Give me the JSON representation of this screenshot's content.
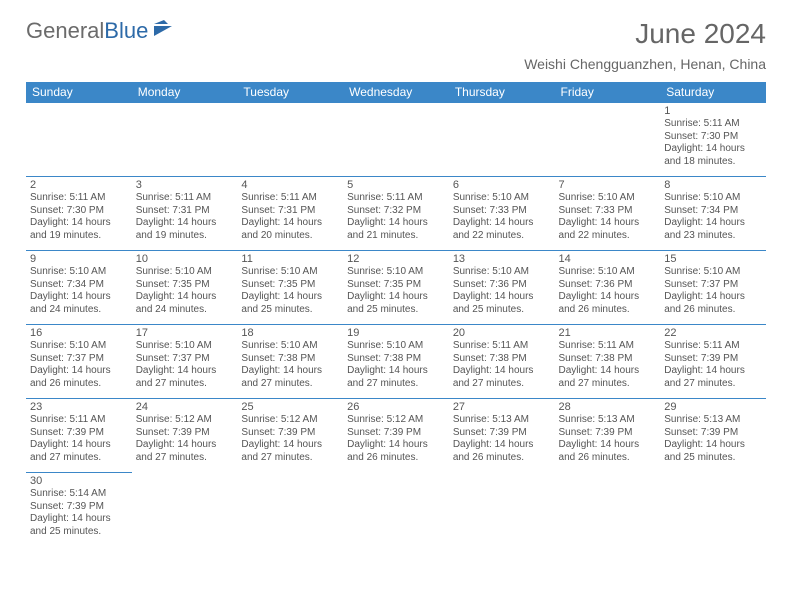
{
  "logo": {
    "word1": "General",
    "word2": "Blue"
  },
  "header": {
    "title": "June 2024",
    "location": "Weishi Chengguanzhen, Henan, China"
  },
  "colors": {
    "header_bg": "#3b87c8",
    "header_text": "#ffffff",
    "cell_border": "#3b87c8",
    "body_text": "#555555",
    "title_text": "#666666"
  },
  "weekdays": [
    "Sunday",
    "Monday",
    "Tuesday",
    "Wednesday",
    "Thursday",
    "Friday",
    "Saturday"
  ],
  "weeks": [
    [
      null,
      null,
      null,
      null,
      null,
      null,
      {
        "n": "1",
        "sunrise": "Sunrise: 5:11 AM",
        "sunset": "Sunset: 7:30 PM",
        "d1": "Daylight: 14 hours",
        "d2": "and 18 minutes."
      }
    ],
    [
      {
        "n": "2",
        "sunrise": "Sunrise: 5:11 AM",
        "sunset": "Sunset: 7:30 PM",
        "d1": "Daylight: 14 hours",
        "d2": "and 19 minutes."
      },
      {
        "n": "3",
        "sunrise": "Sunrise: 5:11 AM",
        "sunset": "Sunset: 7:31 PM",
        "d1": "Daylight: 14 hours",
        "d2": "and 19 minutes."
      },
      {
        "n": "4",
        "sunrise": "Sunrise: 5:11 AM",
        "sunset": "Sunset: 7:31 PM",
        "d1": "Daylight: 14 hours",
        "d2": "and 20 minutes."
      },
      {
        "n": "5",
        "sunrise": "Sunrise: 5:11 AM",
        "sunset": "Sunset: 7:32 PM",
        "d1": "Daylight: 14 hours",
        "d2": "and 21 minutes."
      },
      {
        "n": "6",
        "sunrise": "Sunrise: 5:10 AM",
        "sunset": "Sunset: 7:33 PM",
        "d1": "Daylight: 14 hours",
        "d2": "and 22 minutes."
      },
      {
        "n": "7",
        "sunrise": "Sunrise: 5:10 AM",
        "sunset": "Sunset: 7:33 PM",
        "d1": "Daylight: 14 hours",
        "d2": "and 22 minutes."
      },
      {
        "n": "8",
        "sunrise": "Sunrise: 5:10 AM",
        "sunset": "Sunset: 7:34 PM",
        "d1": "Daylight: 14 hours",
        "d2": "and 23 minutes."
      }
    ],
    [
      {
        "n": "9",
        "sunrise": "Sunrise: 5:10 AM",
        "sunset": "Sunset: 7:34 PM",
        "d1": "Daylight: 14 hours",
        "d2": "and 24 minutes."
      },
      {
        "n": "10",
        "sunrise": "Sunrise: 5:10 AM",
        "sunset": "Sunset: 7:35 PM",
        "d1": "Daylight: 14 hours",
        "d2": "and 24 minutes."
      },
      {
        "n": "11",
        "sunrise": "Sunrise: 5:10 AM",
        "sunset": "Sunset: 7:35 PM",
        "d1": "Daylight: 14 hours",
        "d2": "and 25 minutes."
      },
      {
        "n": "12",
        "sunrise": "Sunrise: 5:10 AM",
        "sunset": "Sunset: 7:35 PM",
        "d1": "Daylight: 14 hours",
        "d2": "and 25 minutes."
      },
      {
        "n": "13",
        "sunrise": "Sunrise: 5:10 AM",
        "sunset": "Sunset: 7:36 PM",
        "d1": "Daylight: 14 hours",
        "d2": "and 25 minutes."
      },
      {
        "n": "14",
        "sunrise": "Sunrise: 5:10 AM",
        "sunset": "Sunset: 7:36 PM",
        "d1": "Daylight: 14 hours",
        "d2": "and 26 minutes."
      },
      {
        "n": "15",
        "sunrise": "Sunrise: 5:10 AM",
        "sunset": "Sunset: 7:37 PM",
        "d1": "Daylight: 14 hours",
        "d2": "and 26 minutes."
      }
    ],
    [
      {
        "n": "16",
        "sunrise": "Sunrise: 5:10 AM",
        "sunset": "Sunset: 7:37 PM",
        "d1": "Daylight: 14 hours",
        "d2": "and 26 minutes."
      },
      {
        "n": "17",
        "sunrise": "Sunrise: 5:10 AM",
        "sunset": "Sunset: 7:37 PM",
        "d1": "Daylight: 14 hours",
        "d2": "and 27 minutes."
      },
      {
        "n": "18",
        "sunrise": "Sunrise: 5:10 AM",
        "sunset": "Sunset: 7:38 PM",
        "d1": "Daylight: 14 hours",
        "d2": "and 27 minutes."
      },
      {
        "n": "19",
        "sunrise": "Sunrise: 5:10 AM",
        "sunset": "Sunset: 7:38 PM",
        "d1": "Daylight: 14 hours",
        "d2": "and 27 minutes."
      },
      {
        "n": "20",
        "sunrise": "Sunrise: 5:11 AM",
        "sunset": "Sunset: 7:38 PM",
        "d1": "Daylight: 14 hours",
        "d2": "and 27 minutes."
      },
      {
        "n": "21",
        "sunrise": "Sunrise: 5:11 AM",
        "sunset": "Sunset: 7:38 PM",
        "d1": "Daylight: 14 hours",
        "d2": "and 27 minutes."
      },
      {
        "n": "22",
        "sunrise": "Sunrise: 5:11 AM",
        "sunset": "Sunset: 7:39 PM",
        "d1": "Daylight: 14 hours",
        "d2": "and 27 minutes."
      }
    ],
    [
      {
        "n": "23",
        "sunrise": "Sunrise: 5:11 AM",
        "sunset": "Sunset: 7:39 PM",
        "d1": "Daylight: 14 hours",
        "d2": "and 27 minutes."
      },
      {
        "n": "24",
        "sunrise": "Sunrise: 5:12 AM",
        "sunset": "Sunset: 7:39 PM",
        "d1": "Daylight: 14 hours",
        "d2": "and 27 minutes."
      },
      {
        "n": "25",
        "sunrise": "Sunrise: 5:12 AM",
        "sunset": "Sunset: 7:39 PM",
        "d1": "Daylight: 14 hours",
        "d2": "and 27 minutes."
      },
      {
        "n": "26",
        "sunrise": "Sunrise: 5:12 AM",
        "sunset": "Sunset: 7:39 PM",
        "d1": "Daylight: 14 hours",
        "d2": "and 26 minutes."
      },
      {
        "n": "27",
        "sunrise": "Sunrise: 5:13 AM",
        "sunset": "Sunset: 7:39 PM",
        "d1": "Daylight: 14 hours",
        "d2": "and 26 minutes."
      },
      {
        "n": "28",
        "sunrise": "Sunrise: 5:13 AM",
        "sunset": "Sunset: 7:39 PM",
        "d1": "Daylight: 14 hours",
        "d2": "and 26 minutes."
      },
      {
        "n": "29",
        "sunrise": "Sunrise: 5:13 AM",
        "sunset": "Sunset: 7:39 PM",
        "d1": "Daylight: 14 hours",
        "d2": "and 25 minutes."
      }
    ],
    [
      {
        "n": "30",
        "sunrise": "Sunrise: 5:14 AM",
        "sunset": "Sunset: 7:39 PM",
        "d1": "Daylight: 14 hours",
        "d2": "and 25 minutes."
      },
      null,
      null,
      null,
      null,
      null,
      null
    ]
  ]
}
